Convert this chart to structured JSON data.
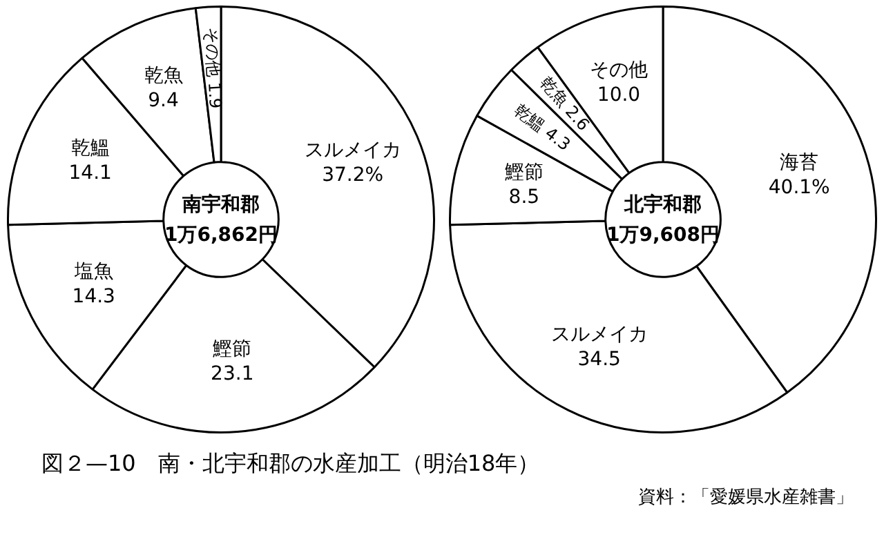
{
  "chart_data": [
    {
      "type": "donut",
      "title": "図２—10　南・北宇和郡の水産加工（明治18年）",
      "categories": [
        "スルメイカ",
        "鰹節",
        "塩魚",
        "乾鰮",
        "乾魚",
        "その他"
      ],
      "values": [
        37.2,
        23.1,
        14.3,
        14.1,
        9.4,
        1.9
      ],
      "value_labels": [
        "37.2%",
        "23.1",
        "14.3",
        "14.1",
        "9.4",
        "1.9"
      ],
      "colors": [
        "#ffffff",
        "#ffffff",
        "#ffffff",
        "#ffffff",
        "#ffffff",
        "#ffffff"
      ],
      "annotations": [
        "南宇和郡",
        "1万6,862円"
      ]
    },
    {
      "type": "donut",
      "categories": [
        "海苔",
        "スルメイカ",
        "鰹節",
        "乾鰮",
        "乾魚",
        "その他"
      ],
      "values": [
        40.1,
        34.5,
        8.5,
        4.3,
        2.6,
        10.0
      ],
      "value_labels": [
        "40.1%",
        "34.5",
        "8.5",
        "4.3",
        "2.6",
        "10.0"
      ],
      "colors": [
        "#ffffff",
        "#ffffff",
        "#ffffff",
        "#ffffff",
        "#ffffff",
        "#ffffff"
      ],
      "annotations": [
        "北宇和郡",
        "1万9,608円",
        "資料：「愛媛県水産雑書」"
      ]
    }
  ]
}
